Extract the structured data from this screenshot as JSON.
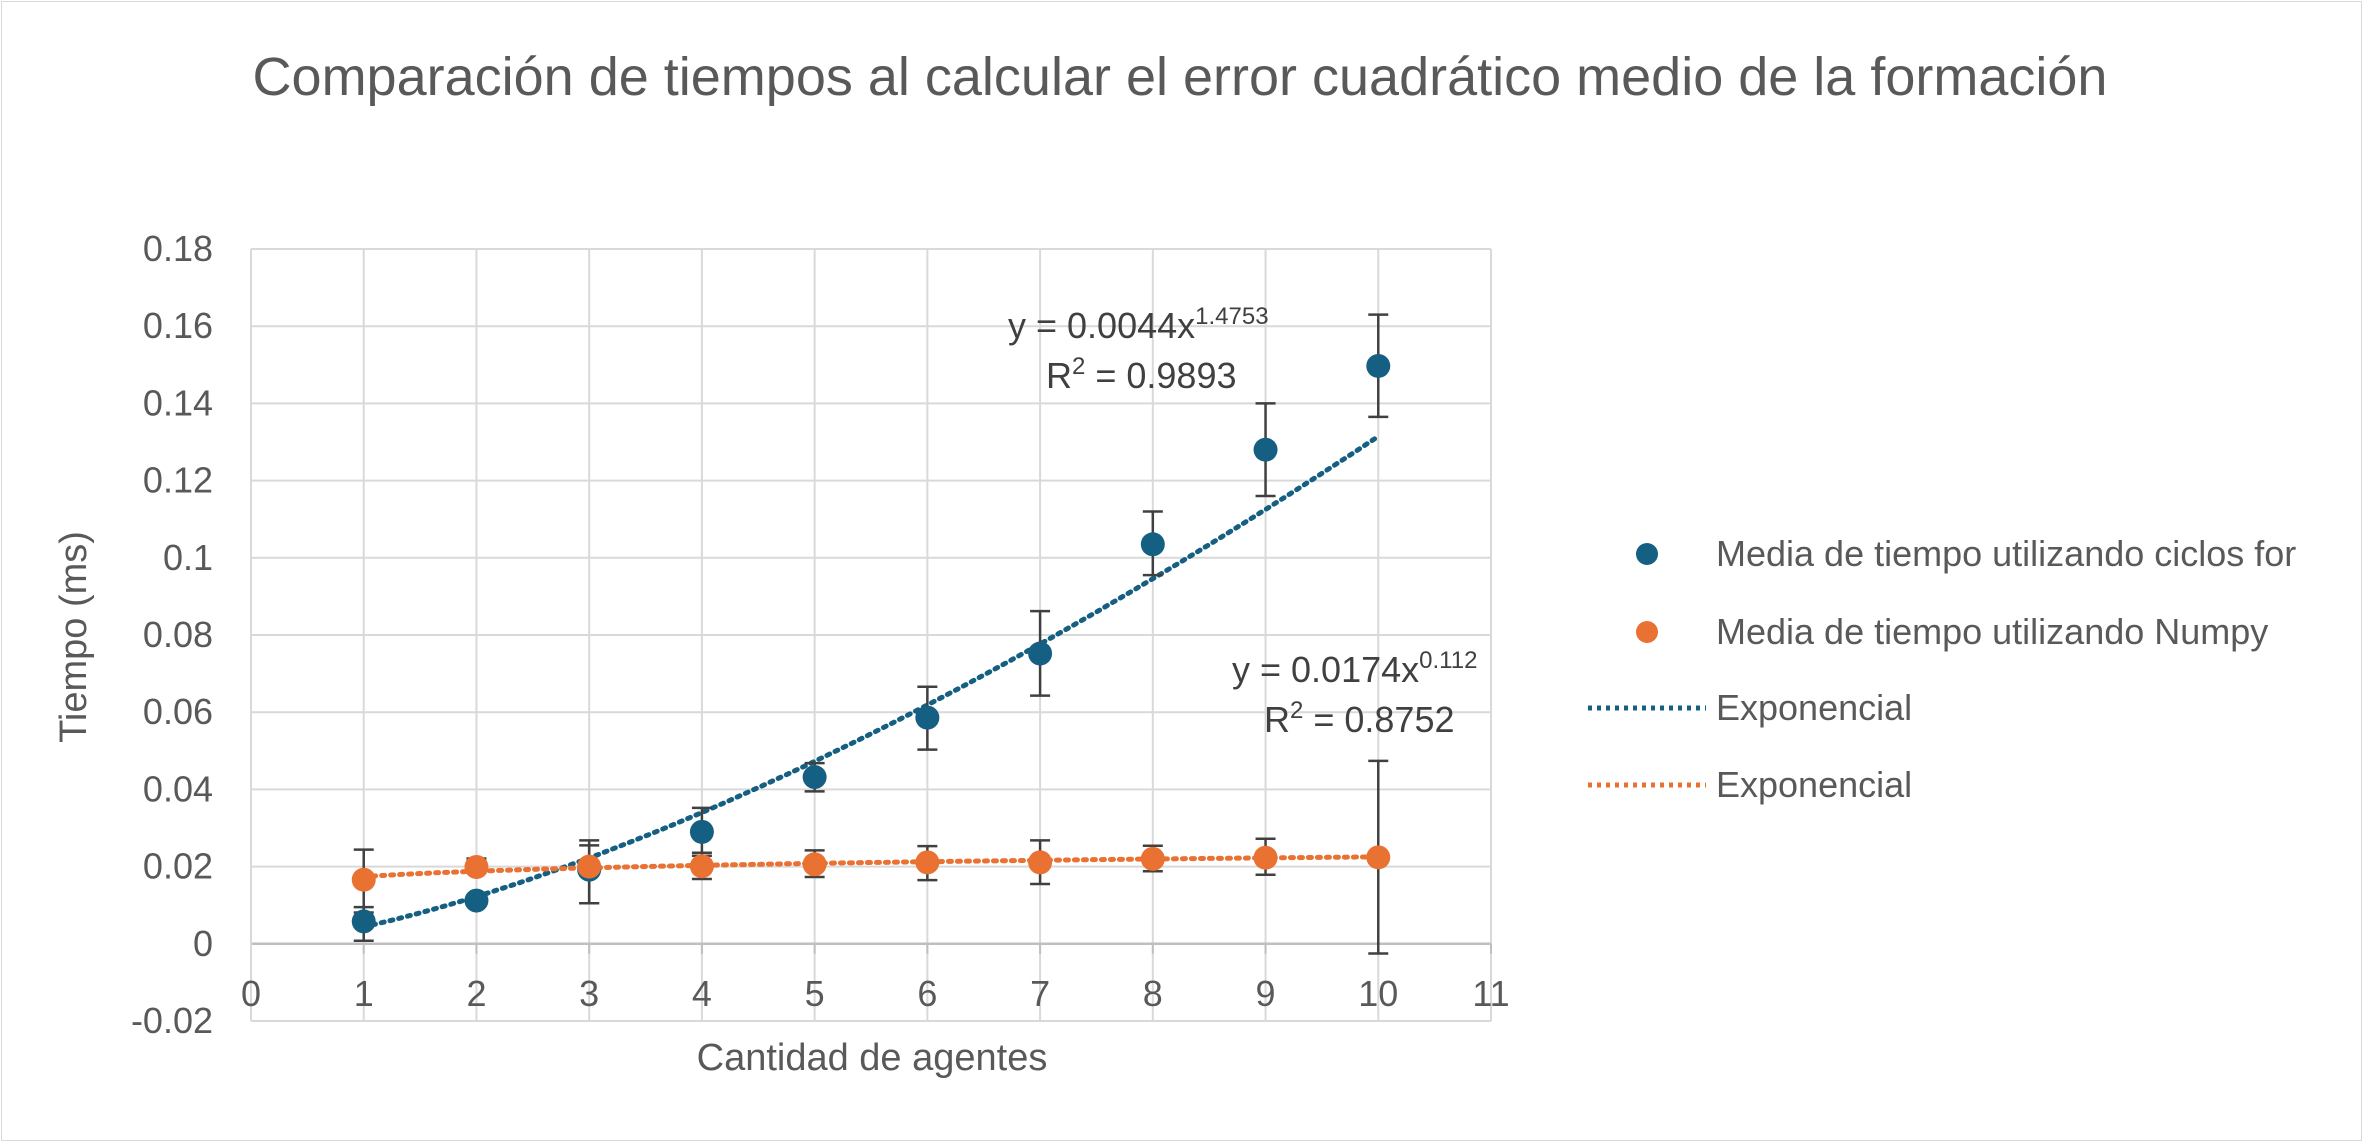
{
  "chart_data": {
    "type": "scatter",
    "title": "Comparación de tiempos al calcular el error cuadrático medio de la formación",
    "xlabel": "Cantidad de agentes",
    "ylabel": "Tiempo (ms)",
    "xlim": [
      0,
      11
    ],
    "ylim": [
      -0.02,
      0.18
    ],
    "xticks": [
      0,
      1,
      2,
      3,
      4,
      5,
      6,
      7,
      8,
      9,
      10,
      11
    ],
    "yticks": [
      -0.02,
      0,
      0.02,
      0.04,
      0.06,
      0.08,
      0.1,
      0.12,
      0.14,
      0.16,
      0.18
    ],
    "ytick_labels": [
      "-0.02",
      "0",
      "0.02",
      "0.04",
      "0.06",
      "0.08",
      "0.1",
      "0.12",
      "0.14",
      "0.16",
      "0.18"
    ],
    "xtick_labels": [
      "0",
      "1",
      "2",
      "3",
      "4",
      "5",
      "6",
      "7",
      "8",
      "9",
      "10",
      "11"
    ],
    "grid": true,
    "legend_position": "right",
    "series": [
      {
        "name": "Media de tiempo utilizando ciclos for",
        "color": "#156082",
        "x": [
          1,
          2,
          3,
          4,
          5,
          6,
          7,
          8,
          9,
          10
        ],
        "y": [
          0.0058,
          0.0112,
          0.0192,
          0.029,
          0.0432,
          0.0586,
          0.0752,
          0.1035,
          0.128,
          0.1497
        ],
        "err_low": [
          0.0008,
          0.0102,
          0.0105,
          0.0228,
          0.0395,
          0.0503,
          0.0643,
          0.0955,
          0.116,
          0.1365
        ],
        "err_high": [
          0.0095,
          0.0125,
          0.0255,
          0.0352,
          0.0468,
          0.0666,
          0.0862,
          0.112,
          0.14,
          0.163
        ]
      },
      {
        "name": "Media de tiempo utilizando Numpy",
        "color": "#E97132",
        "x": [
          1,
          2,
          3,
          4,
          5,
          6,
          7,
          8,
          9,
          10
        ],
        "y": [
          0.0166,
          0.0199,
          0.02,
          0.0201,
          0.0206,
          0.0211,
          0.0211,
          0.022,
          0.0223,
          0.0224
        ],
        "err_low": [
          0.0081,
          0.0187,
          0.0105,
          0.0168,
          0.0173,
          0.0165,
          0.0155,
          0.0188,
          0.0179,
          -0.0025
        ],
        "err_high": [
          0.0244,
          0.0221,
          0.0268,
          0.0236,
          0.0242,
          0.0253,
          0.0268,
          0.0254,
          0.0272,
          0.0474
        ]
      }
    ],
    "trendlines": [
      {
        "name": "Exponencial",
        "color": "#156082",
        "style": "dotted",
        "model": "power",
        "a": 0.0044,
        "b": 1.4753,
        "x_range": [
          1,
          10
        ],
        "equation_label": "y = 0.0044x",
        "equation_exponent": "1.4753",
        "r2_label": "R",
        "r2_sup": "2",
        "r2_value": " = 0.9893"
      },
      {
        "name": "Exponencial",
        "color": "#E97132",
        "style": "dotted",
        "model": "power",
        "a": 0.0174,
        "b": 0.112,
        "x_range": [
          1,
          10
        ],
        "equation_label": "y = 0.0174x",
        "equation_exponent": "0.112",
        "r2_label": "R",
        "r2_sup": "2",
        "r2_value": " = 0.8752"
      }
    ]
  }
}
